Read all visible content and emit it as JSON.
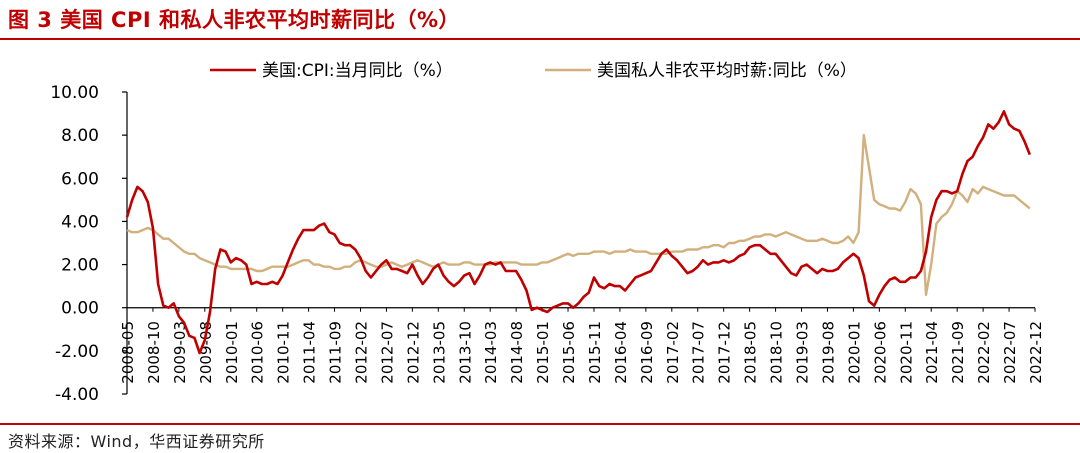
{
  "figure": {
    "title": "图 3 美国 CPI 和私人非农平均时薪同比（%）",
    "source": "资料来源：Wind，华西证券研究所"
  },
  "colors": {
    "accent": "#c00000",
    "cpi": "#c00000",
    "wage": "#d2b07d",
    "axis": "#000000",
    "text": "#000000"
  },
  "chart_data": {
    "type": "line",
    "title": "",
    "xlabel": "",
    "ylabel": "",
    "ylim": [
      -4,
      10
    ],
    "yticks": [
      "10.00",
      "8.00",
      "6.00",
      "4.00",
      "2.00",
      "0.00",
      "-2.00",
      "-4.00"
    ],
    "grid": false,
    "legend": "top",
    "x_start": "2008-05",
    "xticks": [
      "2008-05",
      "2008-10",
      "2009-03",
      "2009-08",
      "2010-01",
      "2010-06",
      "2010-11",
      "2011-04",
      "2011-09",
      "2012-02",
      "2012-07",
      "2012-12",
      "2013-05",
      "2013-10",
      "2014-03",
      "2014-08",
      "2015-01",
      "2015-06",
      "2015-11",
      "2016-04",
      "2016-09",
      "2017-02",
      "2017-07",
      "2017-12",
      "2018-05",
      "2018-10",
      "2019-03",
      "2019-08",
      "2020-01",
      "2020-06",
      "2020-11",
      "2021-04",
      "2021-09",
      "2022-02",
      "2022-07",
      "2022-12"
    ],
    "series": [
      {
        "name": "美国:CPI:当月同比（%）",
        "color": "#c00000",
        "values": [
          4.2,
          5.0,
          5.6,
          5.4,
          4.9,
          3.7,
          1.1,
          0.1,
          0.0,
          0.2,
          -0.4,
          -0.7,
          -1.3,
          -1.4,
          -2.1,
          -1.5,
          -0.2,
          1.8,
          2.7,
          2.6,
          2.1,
          2.3,
          2.2,
          2.0,
          1.1,
          1.2,
          1.1,
          1.1,
          1.2,
          1.1,
          1.5,
          2.1,
          2.7,
          3.2,
          3.6,
          3.6,
          3.6,
          3.8,
          3.9,
          3.5,
          3.4,
          3.0,
          2.9,
          2.9,
          2.7,
          2.3,
          1.7,
          1.4,
          1.7,
          2.0,
          2.2,
          1.8,
          1.8,
          1.7,
          1.6,
          2.0,
          1.5,
          1.1,
          1.4,
          1.8,
          2.0,
          1.5,
          1.2,
          1.0,
          1.2,
          1.5,
          1.6,
          1.1,
          1.5,
          2.0,
          2.1,
          2.0,
          2.1,
          1.7,
          1.7,
          1.7,
          1.3,
          0.8,
          -0.1,
          0.0,
          -0.1,
          -0.2,
          0.0,
          0.1,
          0.2,
          0.2,
          0.0,
          0.2,
          0.5,
          0.7,
          1.4,
          1.0,
          0.9,
          1.1,
          1.0,
          1.0,
          0.8,
          1.1,
          1.4,
          1.5,
          1.6,
          1.7,
          2.1,
          2.5,
          2.7,
          2.4,
          2.2,
          1.9,
          1.6,
          1.7,
          1.9,
          2.2,
          2.0,
          2.1,
          2.1,
          2.2,
          2.1,
          2.2,
          2.4,
          2.5,
          2.8,
          2.9,
          2.9,
          2.7,
          2.5,
          2.5,
          2.2,
          1.9,
          1.6,
          1.5,
          1.9,
          2.0,
          1.8,
          1.6,
          1.8,
          1.7,
          1.7,
          1.8,
          2.1,
          2.3,
          2.5,
          2.3,
          1.5,
          0.3,
          0.1,
          0.6,
          1.0,
          1.3,
          1.4,
          1.2,
          1.2,
          1.4,
          1.4,
          1.7,
          2.6,
          4.2,
          5.0,
          5.4,
          5.4,
          5.3,
          5.4,
          6.2,
          6.8,
          7.0,
          7.5,
          7.9,
          8.5,
          8.3,
          8.6,
          9.1,
          8.5,
          8.3,
          8.2,
          7.7,
          7.1
        ],
        "x_start": "2008-05"
      },
      {
        "name": "美国私人非农平均时薪:同比（%）",
        "color": "#d2b07d",
        "values": [
          3.6,
          3.5,
          3.5,
          3.6,
          3.7,
          3.6,
          3.4,
          3.2,
          3.2,
          3.0,
          2.8,
          2.6,
          2.5,
          2.5,
          2.3,
          2.2,
          2.1,
          2.0,
          1.9,
          1.9,
          1.8,
          1.8,
          1.8,
          1.8,
          1.8,
          1.7,
          1.7,
          1.8,
          1.9,
          1.9,
          1.9,
          1.9,
          2.0,
          2.1,
          2.2,
          2.2,
          2.0,
          2.0,
          1.9,
          1.9,
          1.8,
          1.8,
          1.9,
          1.9,
          2.1,
          2.2,
          2.1,
          2.0,
          1.9,
          1.9,
          2.0,
          2.1,
          2.0,
          1.9,
          2.0,
          2.1,
          2.2,
          2.1,
          2.0,
          1.9,
          2.0,
          2.1,
          2.0,
          2.0,
          2.0,
          2.1,
          2.1,
          2.0,
          2.0,
          2.0,
          2.0,
          2.1,
          2.1,
          2.1,
          2.1,
          2.1,
          2.0,
          2.0,
          2.0,
          2.0,
          2.1,
          2.1,
          2.2,
          2.3,
          2.4,
          2.5,
          2.4,
          2.5,
          2.5,
          2.5,
          2.6,
          2.6,
          2.6,
          2.5,
          2.6,
          2.6,
          2.6,
          2.7,
          2.6,
          2.6,
          2.6,
          2.5,
          2.5,
          2.5,
          2.5,
          2.6,
          2.6,
          2.6,
          2.7,
          2.7,
          2.7,
          2.8,
          2.8,
          2.9,
          2.9,
          2.8,
          3.0,
          3.0,
          3.1,
          3.1,
          3.2,
          3.3,
          3.3,
          3.4,
          3.4,
          3.3,
          3.4,
          3.5,
          3.4,
          3.3,
          3.2,
          3.1,
          3.1,
          3.1,
          3.2,
          3.1,
          3.0,
          3.0,
          3.1,
          3.3,
          3.0,
          3.5,
          8.0,
          6.5,
          5.0,
          4.8,
          4.7,
          4.6,
          4.6,
          4.5,
          4.9,
          5.5,
          5.3,
          4.8,
          0.6,
          2.0,
          3.9,
          4.2,
          4.4,
          4.8,
          5.4,
          5.2,
          4.9,
          5.5,
          5.3,
          5.6,
          5.5,
          5.4,
          5.3,
          5.2,
          5.2,
          5.2,
          5.0,
          4.8,
          4.6
        ],
        "x_start": "2008-05"
      }
    ]
  }
}
